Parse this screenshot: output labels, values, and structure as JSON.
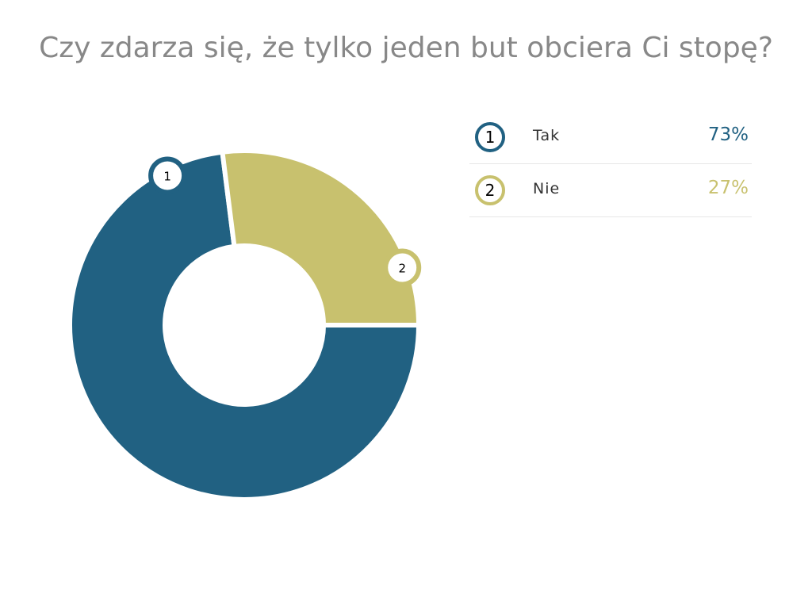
{
  "chart_data": {
    "type": "pie",
    "title": "Czy zdarza się, że tylko jeden but obciera Ci stopę?",
    "categories": [
      "Tak",
      "Nie"
    ],
    "values": [
      73,
      27
    ],
    "value_labels": [
      "73%",
      "27%"
    ],
    "markers": [
      "1",
      "2"
    ],
    "colors": [
      "#216182",
      "#c8c16e"
    ],
    "donut": true,
    "legend_position": "right"
  }
}
